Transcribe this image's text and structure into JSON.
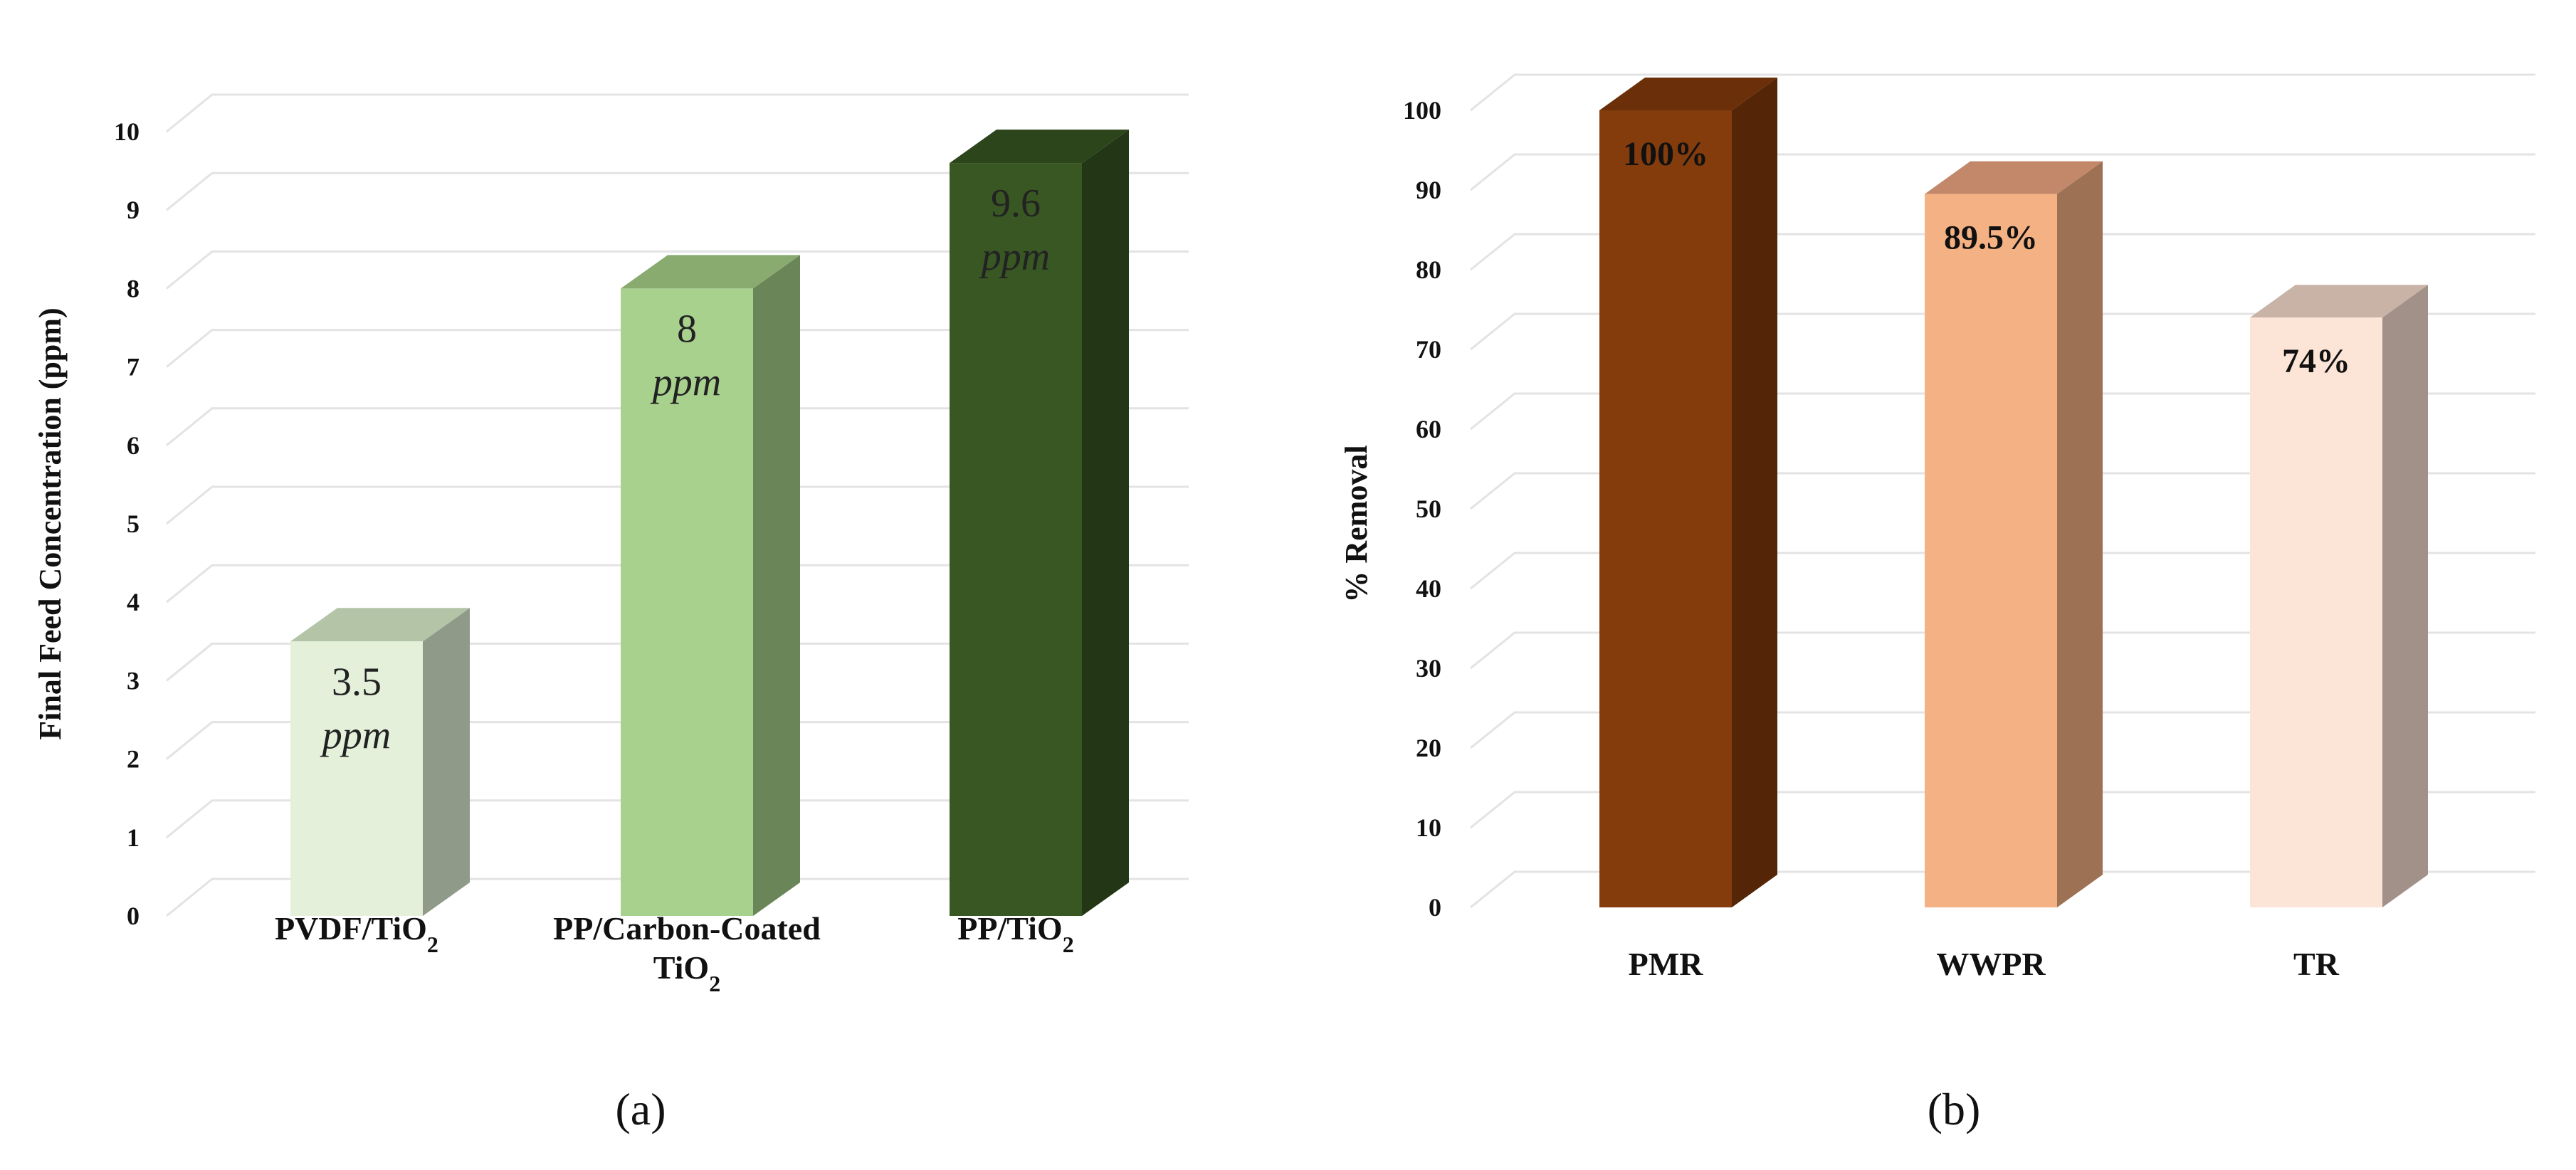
{
  "chart_data": [
    {
      "type": "bar",
      "panel_label": "(a)",
      "ylabel": "Final Feed Concentration (ppm)",
      "ylim": [
        0,
        10
      ],
      "yticks": [
        "0",
        "1",
        "2",
        "3",
        "4",
        "5",
        "6",
        "7",
        "8",
        "9",
        "10"
      ],
      "categories": [
        {
          "main": "PVDF/TiO",
          "sub": "2",
          "line2": ""
        },
        {
          "main": "PP/Carbon-Coated",
          "sub": "",
          "line2": "TiO",
          "line2_sub": "2"
        },
        {
          "main": "PP/TiO",
          "sub": "2",
          "line2": ""
        }
      ],
      "values": [
        3.5,
        8,
        9.6
      ],
      "labels": [
        {
          "value": "3.5",
          "unit": "ppm"
        },
        {
          "value": "8",
          "unit": "ppm"
        },
        {
          "value": "9.6",
          "unit": "ppm"
        }
      ],
      "colors": [
        {
          "front": "#e4f0da",
          "side": "#8f9a88",
          "top": "#b3c4a7"
        },
        {
          "front": "#a9d18e",
          "side": "#6a8558",
          "top": "#89ab6f"
        },
        {
          "front": "#385723",
          "side": "#233717",
          "top": "#2c451b"
        }
      ],
      "grid": true
    },
    {
      "type": "bar",
      "panel_label": "(b)",
      "ylabel": "% Removal",
      "ylim": [
        0,
        100
      ],
      "yticks": [
        "0",
        "10",
        "20",
        "30",
        "40",
        "50",
        "60",
        "70",
        "80",
        "90",
        "100"
      ],
      "categories": [
        {
          "main": "PMR",
          "sub": "",
          "line2": ""
        },
        {
          "main": "WWPR",
          "sub": "",
          "line2": ""
        },
        {
          "main": "TR",
          "sub": "",
          "line2": ""
        }
      ],
      "values": [
        100,
        89.5,
        74
      ],
      "labels": [
        {
          "value": "100%",
          "unit": ""
        },
        {
          "value": "89.5%",
          "unit": ""
        },
        {
          "value": "74%",
          "unit": ""
        }
      ],
      "colors": [
        {
          "front": "#843c0c",
          "side": "#542507",
          "top": "#6b2f09"
        },
        {
          "front": "#f4b183",
          "side": "#9c7154",
          "top": "#c3876a"
        },
        {
          "front": "#fce4d6",
          "side": "#a19189",
          "top": "#c9b3a6"
        }
      ],
      "grid": true
    }
  ]
}
